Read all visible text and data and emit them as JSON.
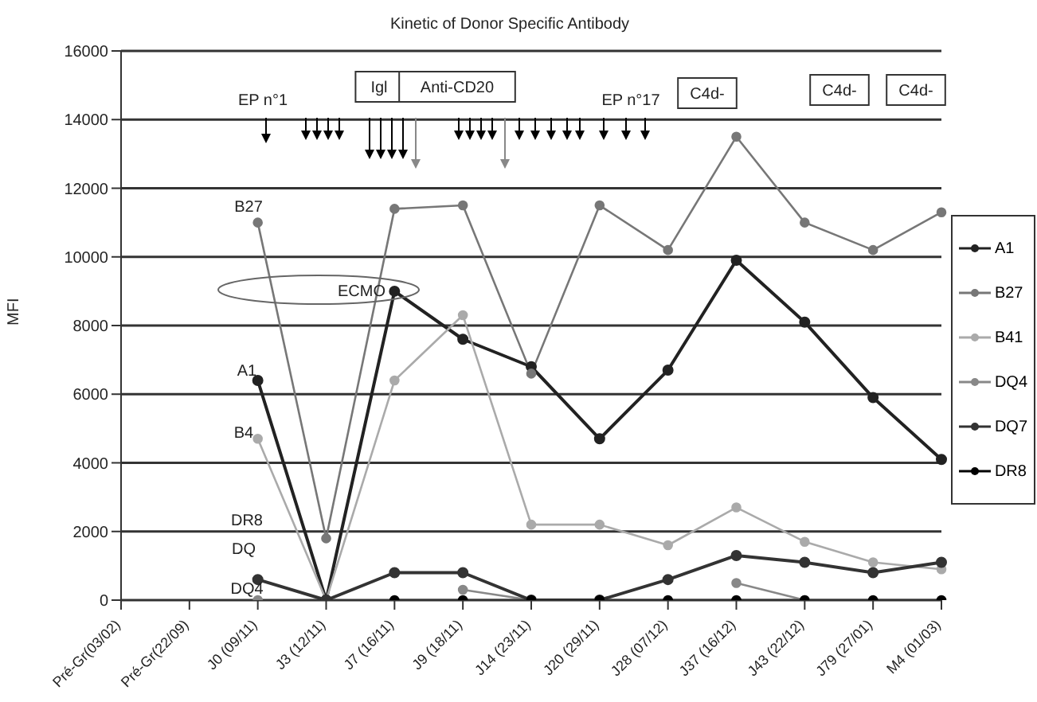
{
  "chart_data": {
    "type": "line",
    "title": "Kinetic of Donor Specific Antibody",
    "ylabel": "MFI",
    "categories": [
      "Pré-Gr(03/02)",
      "Pré-Gr(22/09)",
      "J0 (09/11)",
      "J3 (12/11)",
      "J7 (16/11)",
      "J9 (18/11)",
      "J14 (23/11)",
      "J20 (29/11)",
      "J28 (07/12)",
      "J37 (16/12)",
      "J43 (22/12)",
      "J79 (27/01)",
      "M4 (01/03)"
    ],
    "series": [
      {
        "name": "A1",
        "color": "#222222",
        "values": [
          null,
          null,
          6400,
          0,
          9000,
          7600,
          6800,
          4700,
          6700,
          9900,
          8100,
          5900,
          4100
        ]
      },
      {
        "name": "B27",
        "color": "#777777",
        "values": [
          null,
          null,
          11000,
          1800,
          11400,
          11500,
          6600,
          11500,
          10200,
          13500,
          11000,
          10200,
          11300
        ]
      },
      {
        "name": "B41",
        "color": "#aaaaaa",
        "values": [
          null,
          null,
          4700,
          0,
          6400,
          8300,
          2200,
          2200,
          1600,
          2700,
          1700,
          1100,
          900
        ]
      },
      {
        "name": "DQ4",
        "color": "#888888",
        "values": [
          null,
          null,
          0,
          0,
          null,
          300,
          0,
          null,
          null,
          500,
          0,
          null,
          null
        ]
      },
      {
        "name": "DQ7",
        "color": "#333333",
        "values": [
          null,
          null,
          600,
          0,
          800,
          800,
          0,
          0,
          600,
          1300,
          1100,
          800,
          1100
        ]
      },
      {
        "name": "DR8",
        "color": "#000000",
        "values": [
          null,
          null,
          null,
          null,
          0,
          0,
          0,
          0,
          0,
          0,
          0,
          0,
          0
        ]
      }
    ],
    "ylim": [
      0,
      16000
    ],
    "yticks": [
      0,
      2000,
      4000,
      6000,
      8000,
      10000,
      12000,
      14000,
      16000
    ],
    "grid": "y",
    "legend": "right",
    "marker": "circle",
    "annotations": [
      "EP n°1",
      "Igl",
      "Anti-CD20",
      "EP n°17",
      "C4d-",
      "C4d-",
      "C4d-",
      "ECMO",
      "B27",
      "A1",
      "B4",
      "DR8",
      "DQ",
      "DQ4"
    ]
  }
}
